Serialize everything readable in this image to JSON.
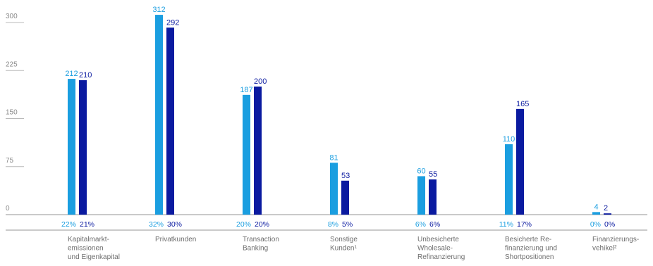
{
  "chart_data": {
    "type": "bar",
    "yticks": [
      "300",
      "225",
      "150",
      "75",
      "0"
    ],
    "ylim": [
      0,
      300
    ],
    "grid": false,
    "colors": {
      "series_a": "#1a9ee0",
      "series_b": "#0a1aa0",
      "axis": "#b8b8b8",
      "tick": "#8a8a8a"
    },
    "categories": [
      [
        "Kapitalmarkt-",
        "emissionen",
        "und Eigenkapital"
      ],
      [
        "Privatkunden"
      ],
      [
        "Transaction",
        "Banking"
      ],
      [
        "Sonstige",
        "Kunden¹"
      ],
      [
        "Unbesicherte",
        "Wholesale-",
        "Refinanzierung"
      ],
      [
        "Besicherte Re-",
        "finanzierung und",
        "Shortpositionen"
      ],
      [
        "Finanzierungs-",
        "vehikel²"
      ]
    ],
    "series": [
      {
        "values": [
          212,
          312,
          187,
          81,
          60,
          110,
          4
        ],
        "labels": [
          "212",
          "312",
          "187",
          "81",
          "60",
          "110",
          "4"
        ],
        "percent_labels": [
          "22%",
          "32%",
          "20%",
          "8%",
          "6%",
          "11%",
          "0%"
        ]
      },
      {
        "values": [
          210,
          292,
          200,
          53,
          55,
          165,
          2
        ],
        "labels": [
          "210",
          "292",
          "200",
          "53",
          "55",
          "165",
          "2"
        ],
        "percent_labels": [
          "21%",
          "30%",
          "20%",
          "5%",
          "6%",
          "17%",
          "0%"
        ]
      }
    ]
  }
}
